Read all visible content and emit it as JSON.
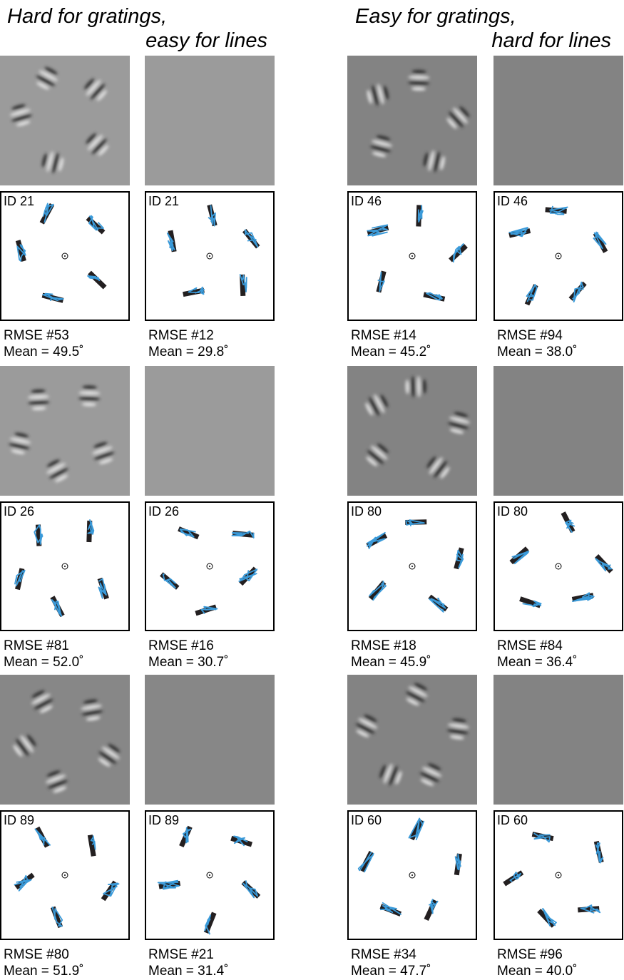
{
  "groups": [
    {
      "title": [
        "Hard for gratings,",
        "easy for lines"
      ],
      "rows": [
        {
          "grating_id": "ID 21",
          "grating_rmse": "RMSE #53",
          "grating_mean": "Mean = 49.5˚",
          "line_id": "ID 21",
          "line_rmse": "RMSE #12",
          "line_mean": "Mean = 29.8˚"
        },
        {
          "grating_id": "ID 26",
          "grating_rmse": "RMSE #81",
          "grating_mean": "Mean = 52.0˚",
          "line_id": "ID 26",
          "line_rmse": "RMSE #16",
          "line_mean": "Mean = 30.7˚"
        },
        {
          "grating_id": "ID 89",
          "grating_rmse": "RMSE #80",
          "grating_mean": "Mean = 51.9˚",
          "line_id": "ID 89",
          "line_rmse": "RMSE #21",
          "line_mean": "Mean = 31.4˚"
        }
      ]
    },
    {
      "title": [
        "Easy for gratings,",
        "hard for lines"
      ],
      "rows": [
        {
          "grating_id": "ID 46",
          "grating_rmse": "RMSE #14",
          "grating_mean": "Mean = 45.2˚",
          "line_id": "ID 46",
          "line_rmse": "RMSE #94",
          "line_mean": "Mean = 38.0˚"
        },
        {
          "grating_id": "ID 80",
          "grating_rmse": "RMSE #18",
          "grating_mean": "Mean = 45.9˚",
          "line_id": "ID 80",
          "line_rmse": "RMSE #84",
          "line_mean": "Mean = 36.4˚"
        },
        {
          "grating_id": "ID 60",
          "grating_rmse": "RMSE #34",
          "grating_mean": "Mean = 47.7˚",
          "line_id": "ID 60",
          "line_rmse": "RMSE #96",
          "line_mean": "Mean = 40.0˚"
        }
      ]
    }
  ]
}
